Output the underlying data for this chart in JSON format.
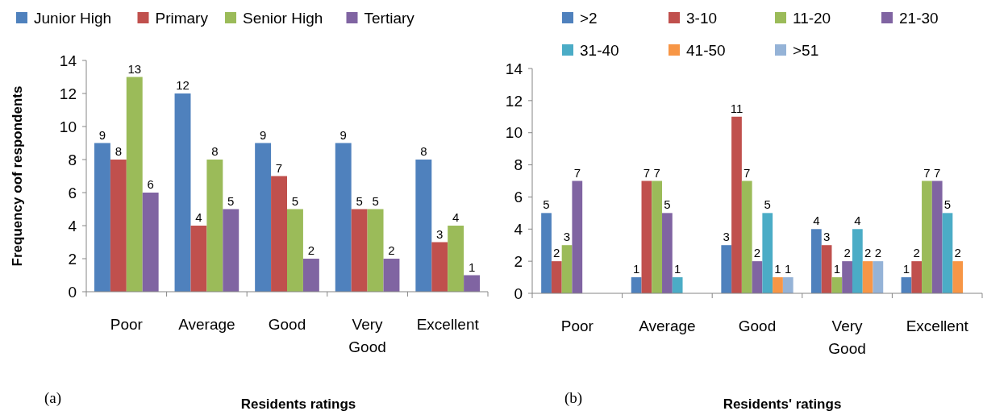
{
  "chart_data": [
    {
      "type": "bar",
      "xlabel": "Residents ratings",
      "ylabel": "Frequency oof respondents",
      "annotations": [
        "(a)"
      ],
      "categories": [
        "Poor",
        "Average",
        "Good",
        "Very Good",
        "Excellent"
      ],
      "ylim": [
        0,
        14
      ],
      "yticks": [
        0,
        2,
        4,
        6,
        8,
        10,
        12,
        14
      ],
      "legend": "top",
      "data_labels": true,
      "grid": false,
      "series": [
        {
          "name": "Junior High",
          "color": "#4f81bd",
          "values": [
            9,
            12,
            9,
            9,
            8
          ]
        },
        {
          "name": "Primary",
          "color": "#c0504d",
          "values": [
            8,
            4,
            7,
            5,
            3
          ]
        },
        {
          "name": "Senior High",
          "color": "#9bbb59",
          "values": [
            13,
            8,
            5,
            5,
            4
          ]
        },
        {
          "name": "Tertiary",
          "color": "#8064a2",
          "values": [
            6,
            5,
            2,
            2,
            1
          ]
        }
      ]
    },
    {
      "type": "bar",
      "xlabel": "Residents' ratings",
      "annotations": [
        "(b)"
      ],
      "categories": [
        "Poor",
        "Average",
        "Good",
        "Very Good",
        "Excellent"
      ],
      "ylim": [
        0,
        14
      ],
      "yticks": [
        0,
        2,
        4,
        6,
        8,
        10,
        12,
        14
      ],
      "legend": "top",
      "data_labels": true,
      "grid": false,
      "series": [
        {
          "name": ">2",
          "color": "#4f81bd",
          "values": [
            5,
            1,
            3,
            4,
            1
          ]
        },
        {
          "name": "3-10",
          "color": "#c0504d",
          "values": [
            2,
            7,
            11,
            3,
            2
          ]
        },
        {
          "name": "11-20",
          "color": "#9bbb59",
          "values": [
            3,
            7,
            7,
            1,
            7
          ]
        },
        {
          "name": "21-30",
          "color": "#8064a2",
          "values": [
            7,
            5,
            2,
            2,
            7
          ]
        },
        {
          "name": "31-40",
          "color": "#4bacc6",
          "values": [
            null,
            1,
            5,
            4,
            5
          ]
        },
        {
          "name": "41-50",
          "color": "#f79646",
          "values": [
            null,
            null,
            1,
            2,
            2
          ]
        },
        {
          "name": ">51",
          "color": "#95b3d7",
          "values": [
            null,
            null,
            1,
            2,
            null
          ]
        }
      ]
    }
  ]
}
